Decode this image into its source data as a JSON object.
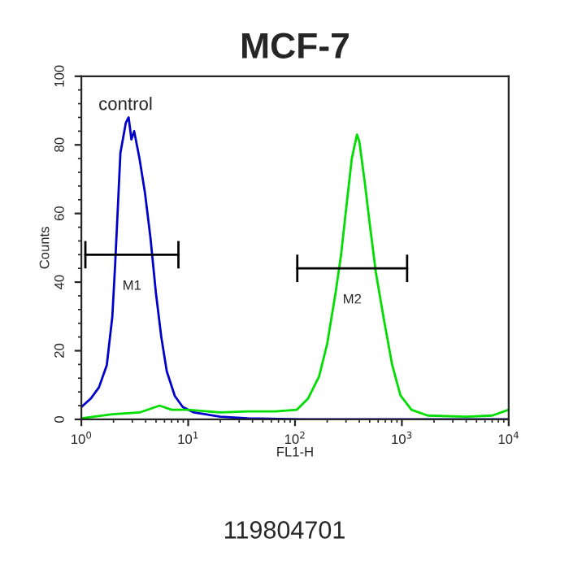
{
  "chart_data": {
    "type": "line",
    "title": "MCF-7",
    "xlabel": "FL1-H",
    "ylabel": "Counts",
    "log": "x",
    "xlim": [
      1,
      10000
    ],
    "ylim": [
      0,
      100
    ],
    "xticks": [
      {
        "value": 1,
        "label": "10$^{0}$"
      },
      {
        "value": 10,
        "label": "10$^{1}$"
      },
      {
        "value": 100,
        "label": "10$^{2}$"
      },
      {
        "value": 1000,
        "label": "10$^{3}$"
      },
      {
        "value": 10000,
        "label": "10$^{4}$"
      }
    ],
    "yticks": [
      0,
      20,
      40,
      60,
      80,
      100
    ],
    "grid": false,
    "legend": false,
    "marker": "none",
    "line_style": "solid",
    "series": [
      {
        "name": "control",
        "color": "#0000cc",
        "x": [
          1,
          1.22,
          1.46,
          1.73,
          1.95,
          2.07,
          2.19,
          2.32,
          2.61,
          2.77,
          2.94,
          3.12,
          3.5,
          3.94,
          4.43,
          4.98,
          5.6,
          6.3,
          7.5,
          8.9,
          11.3,
          20,
          36,
          118,
          1230,
          10000
        ],
        "values": [
          3.6,
          6,
          9.3,
          15.8,
          30,
          45,
          61,
          77.6,
          86.5,
          88,
          81.6,
          84,
          76,
          66,
          53,
          37,
          24,
          14,
          6.8,
          3.6,
          2,
          0.8,
          0.3,
          0,
          0,
          0
        ]
      },
      {
        "color": "#00dd00",
        "x": [
          1,
          1.95,
          3.5,
          5.4,
          7.0,
          10,
          20,
          36,
          65,
          104,
          132,
          168,
          200,
          240,
          270,
          300,
          340,
          380,
          400,
          450,
          505,
          570,
          680,
          810,
          970,
          1230,
          1750,
          4000,
          7000,
          10000
        ],
        "values": [
          0.3,
          1.5,
          2,
          4,
          2.8,
          2.8,
          2,
          2.3,
          2.3,
          2.8,
          6,
          12.5,
          22,
          37,
          48,
          61,
          76,
          83,
          81,
          69,
          56,
          43,
          29,
          16,
          7,
          2.8,
          1.1,
          0.8,
          1.1,
          2.8
        ]
      },
      {
        "color": "#000000",
        "x": [
          1.09,
          8.1
        ],
        "values": [
          48,
          48
        ],
        "errors": [
          4,
          4
        ]
      },
      {
        "color": "#000000",
        "x": [
          105,
          1120
        ],
        "values": [
          44,
          44
        ],
        "errors": [
          4,
          4
        ]
      }
    ],
    "annotations": [
      "M1",
      "M2",
      "119804701"
    ]
  }
}
